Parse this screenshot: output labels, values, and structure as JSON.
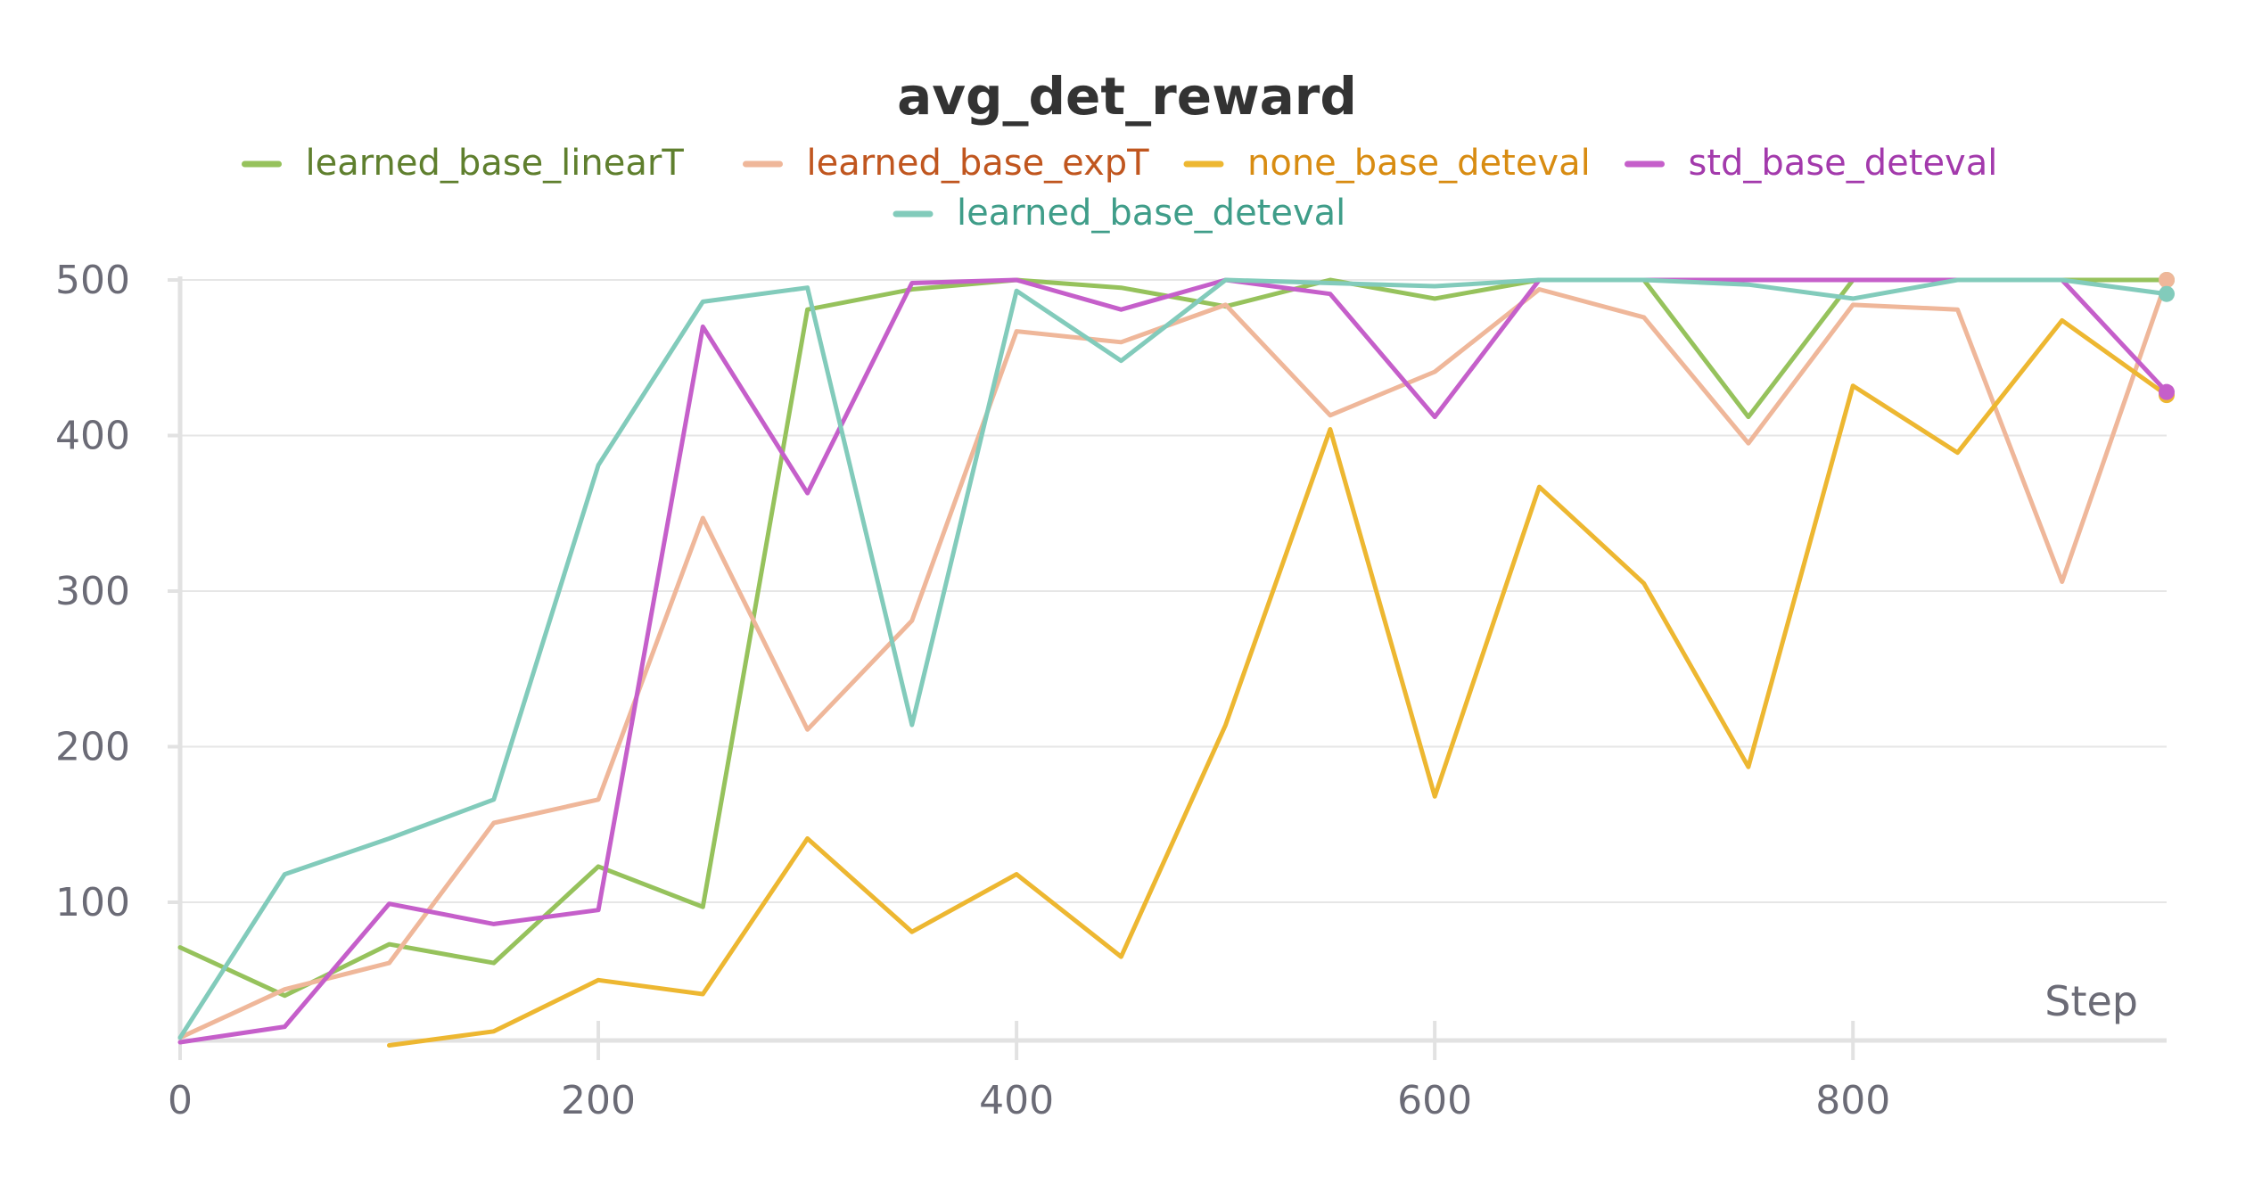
{
  "chart_data": {
    "type": "line",
    "title": "avg_det_reward",
    "xlabel": "Step",
    "ylabel": "",
    "xlim": [
      0,
      950
    ],
    "ylim": [
      10,
      500
    ],
    "xticks": [
      0,
      200,
      400,
      600,
      800
    ],
    "yticks": [
      100,
      200,
      300,
      400,
      500
    ],
    "x_tick_labels": [
      "0",
      "200",
      "400",
      "600",
      "800"
    ],
    "y_tick_labels": [
      "100",
      "200",
      "300",
      "400",
      "500"
    ],
    "grid": true,
    "legend_position": "top-center",
    "x": [
      0,
      50,
      100,
      150,
      200,
      250,
      300,
      350,
      400,
      450,
      500,
      550,
      600,
      650,
      700,
      750,
      800,
      850,
      900,
      950
    ],
    "series": [
      {
        "name": "learned_base_linearT",
        "color": "#96c25c",
        "text_color": "#5f7f2e",
        "values": [
          71,
          40,
          73,
          61,
          123,
          97,
          481,
          494,
          500,
          495,
          483,
          500,
          488,
          500,
          500,
          412,
          500,
          500,
          500,
          500
        ]
      },
      {
        "name": "learned_base_expT",
        "color": "#efb79a",
        "text_color": "#c0561f",
        "values": [
          13,
          44,
          61,
          151,
          166,
          347,
          211,
          281,
          467,
          460,
          484,
          413,
          441,
          494,
          476,
          395,
          484,
          481,
          306,
          500
        ]
      },
      {
        "name": "none_base_deteval",
        "color": "#edb731",
        "text_color": "#d88c12",
        "values": [
          null,
          null,
          8,
          17,
          50,
          41,
          141,
          81,
          118,
          65,
          214,
          404,
          168,
          367,
          305,
          187,
          432,
          389,
          474,
          426
        ]
      },
      {
        "name": "std_base_deteval",
        "color": "#c55fca",
        "text_color": "#a33aac",
        "values": [
          10,
          20,
          99,
          86,
          95,
          470,
          363,
          498,
          500,
          481,
          500,
          491,
          412,
          500,
          500,
          500,
          500,
          500,
          500,
          428
        ]
      },
      {
        "name": "learned_base_deteval",
        "color": "#82cbbb",
        "text_color": "#3f9d89",
        "values": [
          13,
          118,
          141,
          166,
          381,
          486,
          495,
          214,
          493,
          448,
          500,
          498,
          496,
          500,
          500,
          497,
          488,
          500,
          500,
          491
        ]
      }
    ]
  }
}
